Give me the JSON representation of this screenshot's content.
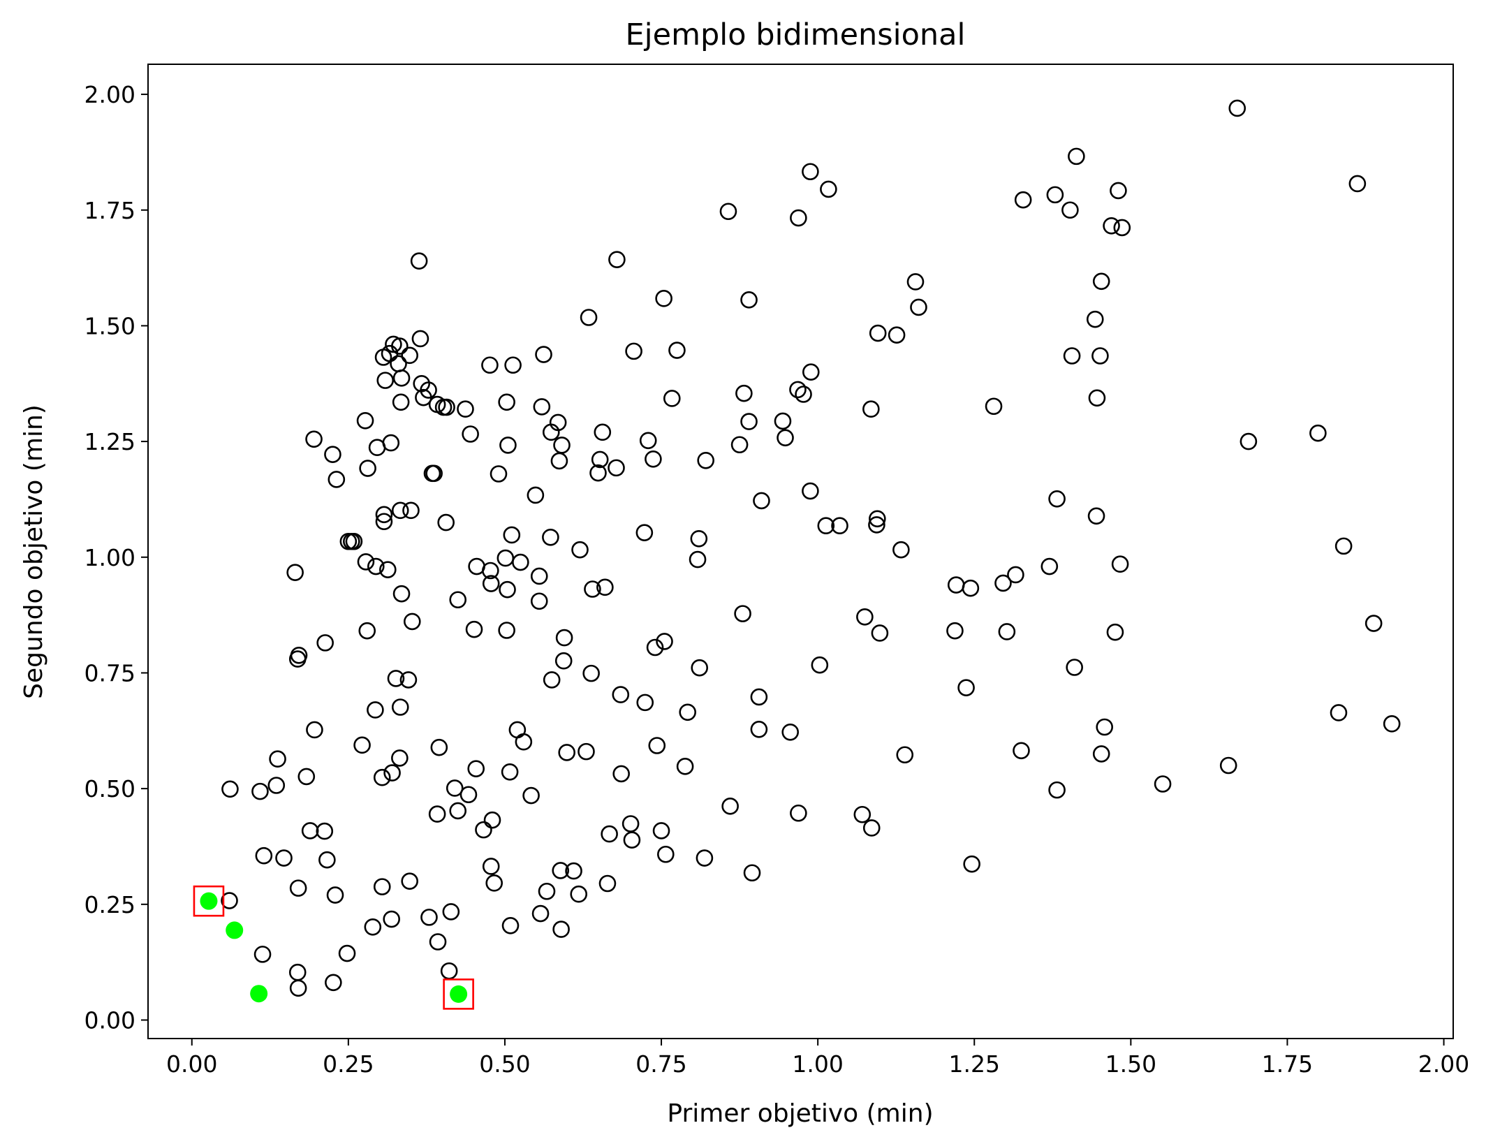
{
  "colors": {
    "pareto_point": "#00ff00",
    "highlight_box": "#ff0000",
    "point_edge": "#000000"
  },
  "chart_data": {
    "type": "scatter",
    "title": "Ejemplo bidimensional",
    "xlabel": "Primer objetivo (min)",
    "ylabel": "Segundo objetivo (min)",
    "xlim": [
      -0.07,
      2.015
    ],
    "ylim": [
      -0.04,
      2.065
    ],
    "grid": false,
    "x_ticks": [
      0.0,
      0.25,
      0.5,
      0.75,
      1.0,
      1.25,
      1.5,
      1.75,
      2.0
    ],
    "y_ticks": [
      0.0,
      0.25,
      0.5,
      0.75,
      1.0,
      1.25,
      1.5,
      1.75,
      2.0
    ],
    "x_tick_labels": [
      "0.00",
      "0.25",
      "0.50",
      "0.75",
      "1.00",
      "1.25",
      "1.50",
      "1.75",
      "2.00"
    ],
    "y_tick_labels": [
      "0.00",
      "0.25",
      "0.50",
      "0.75",
      "1.00",
      "1.25",
      "1.50",
      "1.75",
      "2.00"
    ],
    "series": [
      {
        "marker": "open-circle",
        "points": [
          [
            1.67,
            1.97
          ],
          [
            1.862,
            1.807
          ],
          [
            1.413,
            1.866
          ],
          [
            0.988,
            1.833
          ],
          [
            1.017,
            1.795
          ],
          [
            1.379,
            1.783
          ],
          [
            1.328,
            1.772
          ],
          [
            1.48,
            1.792
          ],
          [
            1.403,
            1.75
          ],
          [
            0.857,
            1.747
          ],
          [
            0.969,
            1.733
          ],
          [
            1.469,
            1.716
          ],
          [
            1.486,
            1.712
          ],
          [
            0.363,
            1.64
          ],
          [
            0.679,
            1.643
          ],
          [
            1.156,
            1.595
          ],
          [
            1.453,
            1.596
          ],
          [
            1.161,
            1.54
          ],
          [
            0.754,
            1.559
          ],
          [
            0.89,
            1.556
          ],
          [
            0.634,
            1.518
          ],
          [
            1.443,
            1.514
          ],
          [
            1.096,
            1.484
          ],
          [
            1.126,
            1.48
          ],
          [
            0.365,
            1.472
          ],
          [
            0.322,
            1.46
          ],
          [
            0.332,
            1.456
          ],
          [
            0.316,
            1.44
          ],
          [
            0.306,
            1.432
          ],
          [
            0.348,
            1.436
          ],
          [
            0.33,
            1.418
          ],
          [
            0.476,
            1.415
          ],
          [
            0.513,
            1.415
          ],
          [
            0.562,
            1.438
          ],
          [
            0.706,
            1.445
          ],
          [
            0.775,
            1.447
          ],
          [
            1.406,
            1.435
          ],
          [
            1.451,
            1.435
          ],
          [
            0.309,
            1.382
          ],
          [
            0.335,
            1.387
          ],
          [
            0.367,
            1.375
          ],
          [
            0.378,
            1.361
          ],
          [
            0.37,
            1.345
          ],
          [
            0.334,
            1.335
          ],
          [
            0.392,
            1.33
          ],
          [
            0.402,
            1.324
          ],
          [
            0.407,
            1.324
          ],
          [
            0.437,
            1.32
          ],
          [
            0.503,
            1.335
          ],
          [
            0.559,
            1.325
          ],
          [
            0.767,
            1.343
          ],
          [
            0.882,
            1.354
          ],
          [
            0.968,
            1.362
          ],
          [
            0.977,
            1.352
          ],
          [
            0.989,
            1.4
          ],
          [
            1.446,
            1.344
          ],
          [
            1.281,
            1.326
          ],
          [
            1.085,
            1.32
          ],
          [
            0.277,
            1.295
          ],
          [
            0.195,
            1.255
          ],
          [
            0.225,
            1.222
          ],
          [
            0.231,
            1.168
          ],
          [
            0.318,
            1.247
          ],
          [
            0.296,
            1.237
          ],
          [
            0.281,
            1.192
          ],
          [
            0.384,
            1.181
          ],
          [
            0.387,
            1.181
          ],
          [
            0.445,
            1.266
          ],
          [
            0.505,
            1.242
          ],
          [
            0.574,
            1.27
          ],
          [
            0.585,
            1.291
          ],
          [
            0.591,
            1.242
          ],
          [
            0.587,
            1.208
          ],
          [
            0.656,
            1.27
          ],
          [
            0.652,
            1.211
          ],
          [
            0.649,
            1.182
          ],
          [
            0.678,
            1.193
          ],
          [
            0.729,
            1.252
          ],
          [
            0.737,
            1.212
          ],
          [
            0.821,
            1.209
          ],
          [
            0.875,
            1.243
          ],
          [
            0.89,
            1.293
          ],
          [
            0.944,
            1.294
          ],
          [
            0.948,
            1.258
          ],
          [
            1.688,
            1.25
          ],
          [
            1.799,
            1.268
          ],
          [
            0.49,
            1.18
          ],
          [
            0.549,
            1.134
          ],
          [
            0.307,
            1.092
          ],
          [
            0.307,
            1.077
          ],
          [
            0.333,
            1.101
          ],
          [
            0.35,
            1.101
          ],
          [
            0.406,
            1.075
          ],
          [
            0.25,
            1.034
          ],
          [
            0.255,
            1.034
          ],
          [
            0.259,
            1.034
          ],
          [
            0.511,
            1.048
          ],
          [
            0.573,
            1.043
          ],
          [
            0.723,
            1.053
          ],
          [
            0.81,
            1.04
          ],
          [
            0.91,
            1.122
          ],
          [
            0.988,
            1.143
          ],
          [
            1.013,
            1.068
          ],
          [
            1.035,
            1.068
          ],
          [
            1.095,
            1.083
          ],
          [
            1.094,
            1.07
          ],
          [
            1.133,
            1.016
          ],
          [
            1.382,
            1.126
          ],
          [
            1.445,
            1.089
          ],
          [
            0.278,
            0.99
          ],
          [
            0.294,
            0.98
          ],
          [
            0.313,
            0.973
          ],
          [
            0.165,
            0.967
          ],
          [
            0.455,
            0.98
          ],
          [
            0.477,
            0.971
          ],
          [
            0.501,
            0.998
          ],
          [
            0.525,
            0.989
          ],
          [
            0.478,
            0.943
          ],
          [
            0.504,
            0.93
          ],
          [
            0.555,
            0.959
          ],
          [
            0.555,
            0.905
          ],
          [
            0.62,
            1.016
          ],
          [
            0.64,
            0.931
          ],
          [
            0.66,
            0.935
          ],
          [
            0.808,
            0.995
          ],
          [
            1.221,
            0.94
          ],
          [
            1.244,
            0.933
          ],
          [
            1.296,
            0.944
          ],
          [
            1.316,
            0.962
          ],
          [
            1.37,
            0.98
          ],
          [
            1.483,
            0.985
          ],
          [
            1.84,
            1.024
          ],
          [
            0.335,
            0.921
          ],
          [
            0.425,
            0.908
          ],
          [
            0.352,
            0.861
          ],
          [
            0.28,
            0.841
          ],
          [
            0.451,
            0.844
          ],
          [
            0.503,
            0.842
          ],
          [
            0.595,
            0.826
          ],
          [
            0.755,
            0.818
          ],
          [
            0.74,
            0.805
          ],
          [
            0.88,
            0.878
          ],
          [
            1.075,
            0.871
          ],
          [
            1.099,
            0.836
          ],
          [
            1.219,
            0.841
          ],
          [
            1.302,
            0.839
          ],
          [
            1.475,
            0.838
          ],
          [
            1.888,
            0.857
          ],
          [
            0.213,
            0.815
          ],
          [
            0.171,
            0.788
          ],
          [
            0.169,
            0.78
          ],
          [
            0.594,
            0.776
          ],
          [
            0.638,
            0.749
          ],
          [
            0.575,
            0.735
          ],
          [
            0.811,
            0.761
          ],
          [
            1.003,
            0.767
          ],
          [
            1.41,
            0.762
          ],
          [
            0.326,
            0.738
          ],
          [
            0.346,
            0.735
          ],
          [
            1.237,
            0.718
          ],
          [
            0.685,
            0.703
          ],
          [
            0.906,
            0.698
          ],
          [
            0.724,
            0.686
          ],
          [
            0.293,
            0.67
          ],
          [
            0.333,
            0.676
          ],
          [
            0.792,
            0.665
          ],
          [
            1.832,
            0.664
          ],
          [
            1.917,
            0.64
          ],
          [
            1.458,
            0.633
          ],
          [
            0.196,
            0.627
          ],
          [
            0.52,
            0.627
          ],
          [
            0.906,
            0.628
          ],
          [
            0.956,
            0.622
          ],
          [
            0.53,
            0.601
          ],
          [
            0.272,
            0.594
          ],
          [
            0.395,
            0.589
          ],
          [
            0.743,
            0.593
          ],
          [
            0.599,
            0.578
          ],
          [
            0.63,
            0.58
          ],
          [
            1.139,
            0.573
          ],
          [
            1.325,
            0.582
          ],
          [
            1.453,
            0.575
          ],
          [
            0.137,
            0.564
          ],
          [
            0.332,
            0.566
          ],
          [
            0.454,
            0.543
          ],
          [
            0.508,
            0.536
          ],
          [
            0.686,
            0.532
          ],
          [
            0.788,
            0.548
          ],
          [
            1.656,
            0.55
          ],
          [
            0.183,
            0.526
          ],
          [
            0.304,
            0.524
          ],
          [
            0.32,
            0.534
          ],
          [
            0.061,
            0.499
          ],
          [
            0.109,
            0.494
          ],
          [
            0.135,
            0.507
          ],
          [
            0.42,
            0.501
          ],
          [
            0.442,
            0.487
          ],
          [
            0.542,
            0.485
          ],
          [
            1.382,
            0.497
          ],
          [
            1.551,
            0.51
          ],
          [
            0.86,
            0.462
          ],
          [
            0.969,
            0.447
          ],
          [
            1.071,
            0.444
          ],
          [
            1.086,
            0.415
          ],
          [
            0.392,
            0.445
          ],
          [
            0.425,
            0.452
          ],
          [
            0.48,
            0.432
          ],
          [
            0.701,
            0.424
          ],
          [
            0.466,
            0.411
          ],
          [
            0.75,
            0.409
          ],
          [
            0.189,
            0.409
          ],
          [
            0.212,
            0.408
          ],
          [
            0.667,
            0.402
          ],
          [
            0.703,
            0.389
          ],
          [
            0.115,
            0.355
          ],
          [
            0.147,
            0.35
          ],
          [
            0.216,
            0.346
          ],
          [
            0.757,
            0.358
          ],
          [
            0.819,
            0.35
          ],
          [
            0.478,
            0.332
          ],
          [
            0.589,
            0.323
          ],
          [
            0.61,
            0.322
          ],
          [
            0.895,
            0.318
          ],
          [
            1.246,
            0.337
          ],
          [
            0.483,
            0.296
          ],
          [
            0.664,
            0.295
          ],
          [
            0.304,
            0.288
          ],
          [
            0.348,
            0.3
          ],
          [
            0.17,
            0.285
          ],
          [
            0.567,
            0.278
          ],
          [
            0.618,
            0.272
          ],
          [
            0.229,
            0.27
          ],
          [
            0.06,
            0.258
          ],
          [
            0.414,
            0.234
          ],
          [
            0.557,
            0.23
          ],
          [
            0.379,
            0.222
          ],
          [
            0.319,
            0.218
          ],
          [
            0.289,
            0.201
          ],
          [
            0.509,
            0.204
          ],
          [
            0.59,
            0.196
          ],
          [
            0.393,
            0.169
          ],
          [
            0.248,
            0.144
          ],
          [
            0.113,
            0.142
          ],
          [
            0.411,
            0.106
          ],
          [
            0.169,
            0.103
          ],
          [
            0.226,
            0.081
          ],
          [
            0.17,
            0.069
          ]
        ]
      },
      {
        "marker": "filled-circle",
        "color": "#00ff00",
        "points": [
          [
            0.027,
            0.257
          ],
          [
            0.068,
            0.194
          ],
          [
            0.107,
            0.057
          ],
          [
            0.426,
            0.056
          ]
        ]
      },
      {
        "marker": "open-square",
        "color": "#ff0000",
        "points": [
          [
            0.027,
            0.257
          ],
          [
            0.426,
            0.056
          ]
        ]
      }
    ]
  }
}
